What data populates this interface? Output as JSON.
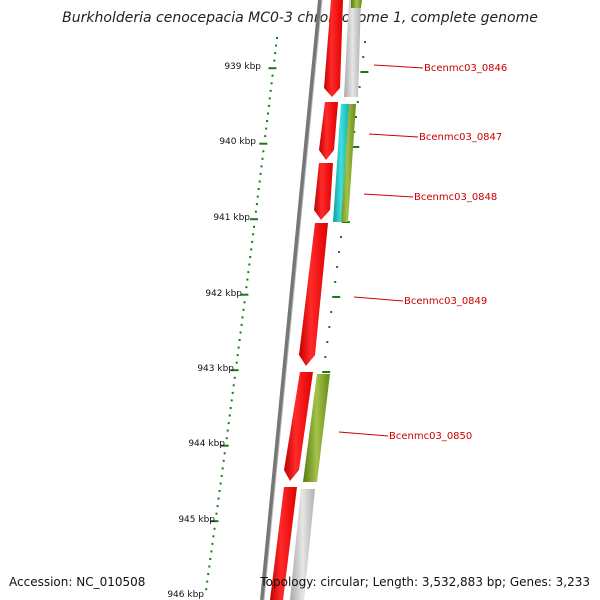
{
  "title": "Burkholderia cenocepacia MC0-3 chromosome 1, complete genome",
  "accession_text": "Accession: NC_010508",
  "summary_text": "Topology: circular; Length: 3,532,883 bp; Genes: 3,233",
  "colors": {
    "backbone": "#777777",
    "forward_cds": "#ff0000",
    "reverse_cds": "#bdbdbd",
    "rna": "#22cccc",
    "orf": "#7a9a2a",
    "tick": "#1a7a1a",
    "label": "#cc0000"
  },
  "kbp_ticks": [
    "939 kbp",
    "940 kbp",
    "941 kbp",
    "942 kbp",
    "943 kbp",
    "944 kbp",
    "945 kbp",
    "946 kbp"
  ],
  "genes": [
    "Bcenmc03_0846",
    "Bcenmc03_0847",
    "Bcenmc03_0848",
    "Bcenmc03_0849",
    "Bcenmc03_0850"
  ]
}
